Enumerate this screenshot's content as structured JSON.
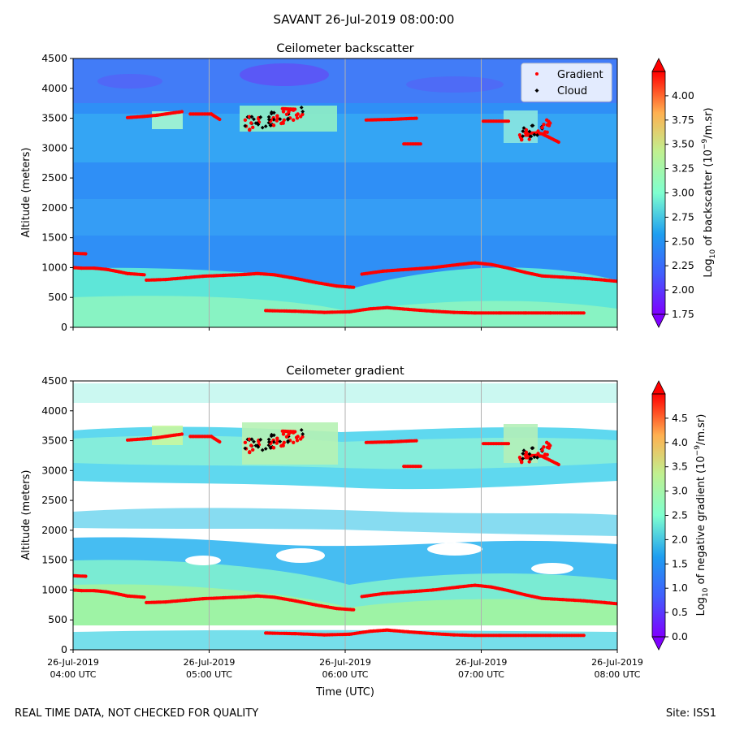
{
  "figure": {
    "title": "SAVANT 26-Jul-2019 08:00:00",
    "footer_left": "REAL TIME DATA, NOT CHECKED FOR QUALITY",
    "footer_right": "Site: ISS1",
    "xlabel": "Time (UTC)"
  },
  "colors": {
    "gradient_marker": "#ff0000",
    "cloud_marker": "#000000",
    "axis": "#000000",
    "gridline": "#b0b0b0"
  },
  "chart_data": [
    {
      "type": "heatmap",
      "title": "Ceilometer backscatter",
      "ylabel": "Altitude (meters)",
      "ylim": [
        0,
        4500
      ],
      "yticks": [
        "0",
        "500",
        "1000",
        "1500",
        "2000",
        "2500",
        "3000",
        "3500",
        "4000",
        "4500"
      ],
      "xticks": [],
      "colorbar": {
        "label_prefix": "Log",
        "label_sub": "10",
        "label_mid": " of backscatter (10",
        "label_sup": "−9",
        "label_suffix": "/m.sr)",
        "range": [
          1.75,
          4.25
        ],
        "ticks": [
          "1.75",
          "2.00",
          "2.25",
          "2.50",
          "2.75",
          "3.00",
          "3.25",
          "3.50",
          "3.75",
          "4.00"
        ]
      },
      "legend": {
        "position": "top-right",
        "entries": [
          "Gradient",
          "Cloud"
        ]
      },
      "series": [
        {
          "name": "Gradient",
          "segments": [
            [
              [
                0.0,
                1240
              ],
              [
                0.3,
                1230
              ]
            ],
            [
              [
                0.0,
                1000
              ],
              [
                0.2,
                990
              ],
              [
                0.5,
                990
              ],
              [
                0.8,
                970
              ],
              [
                1.1,
                930
              ],
              [
                1.3,
                900
              ],
              [
                1.7,
                880
              ]
            ],
            [
              [
                1.75,
                790
              ],
              [
                2.2,
                800
              ],
              [
                2.7,
                830
              ],
              [
                3.1,
                855
              ],
              [
                3.6,
                870
              ],
              [
                4.1,
                885
              ],
              [
                4.4,
                900
              ],
              [
                4.8,
                880
              ],
              [
                5.3,
                820
              ],
              [
                5.8,
                750
              ],
              [
                6.3,
                690
              ],
              [
                6.7,
                670
              ]
            ],
            [
              [
                6.9,
                890
              ],
              [
                7.4,
                940
              ],
              [
                8.0,
                970
              ],
              [
                8.6,
                1000
              ],
              [
                9.2,
                1050
              ],
              [
                9.6,
                1080
              ],
              [
                10.0,
                1050
              ],
              [
                10.4,
                990
              ],
              [
                10.8,
                920
              ],
              [
                11.2,
                860
              ],
              [
                11.7,
                840
              ],
              [
                12.2,
                820
              ],
              [
                12.7,
                790
              ],
              [
                13.0,
                770
              ]
            ],
            [
              [
                4.6,
                280
              ],
              [
                5.3,
                270
              ],
              [
                6.0,
                250
              ],
              [
                6.6,
                260
              ],
              [
                7.1,
                310
              ],
              [
                7.5,
                330
              ],
              [
                8.0,
                300
              ],
              [
                8.6,
                270
              ],
              [
                9.1,
                250
              ],
              [
                9.6,
                240
              ],
              [
                10.2,
                240
              ],
              [
                10.8,
                240
              ],
              [
                11.4,
                240
              ],
              [
                12.2,
                240
              ]
            ],
            [
              [
                1.3,
                3510
              ],
              [
                1.7,
                3530
              ],
              [
                2.0,
                3550
              ],
              [
                2.6,
                3610
              ]
            ],
            [
              [
                2.8,
                3570
              ],
              [
                3.3,
                3570
              ],
              [
                3.5,
                3480
              ]
            ],
            [
              [
                7.0,
                3470
              ],
              [
                7.6,
                3480
              ],
              [
                8.2,
                3500
              ]
            ],
            [
              [
                7.9,
                3070
              ],
              [
                8.3,
                3070
              ]
            ],
            [
              [
                9.8,
                3450
              ],
              [
                10.4,
                3450
              ]
            ],
            [
              [
                10.8,
                3260
              ],
              [
                11.2,
                3240
              ],
              [
                11.6,
                3100
              ]
            ],
            [
              [
                5.0,
                3660
              ],
              [
                5.3,
                3650
              ]
            ]
          ]
        },
        {
          "name": "Cloud",
          "clusters": [
            {
              "t": [
                4.1,
                5.5
              ],
              "alt": [
                3300,
                3650
              ]
            },
            {
              "t": [
                10.65,
                11.4
              ],
              "alt": [
                3100,
                3450
              ]
            }
          ]
        }
      ]
    },
    {
      "type": "heatmap",
      "title": "Ceilometer gradient",
      "ylabel": "Altitude (meters)",
      "ylim": [
        0,
        4500
      ],
      "yticks": [
        "0",
        "500",
        "1000",
        "1500",
        "2000",
        "2500",
        "3000",
        "3500",
        "4000",
        "4500"
      ],
      "xticks": [
        [
          "26-Jul-2019",
          "04:00 UTC"
        ],
        [
          "26-Jul-2019",
          "05:00 UTC"
        ],
        [
          "26-Jul-2019",
          "06:00 UTC"
        ],
        [
          "26-Jul-2019",
          "07:00 UTC"
        ],
        [
          "26-Jul-2019",
          "08:00 UTC"
        ]
      ],
      "colorbar": {
        "label_prefix": "Log",
        "label_sub": "10",
        "label_mid": " of negative gradient (10",
        "label_sup": "−9",
        "label_suffix": "/m.sr)",
        "range": [
          0.0,
          5.0
        ],
        "ticks": [
          "0.0",
          "0.5",
          "1.0",
          "1.5",
          "2.0",
          "2.5",
          "3.0",
          "3.5",
          "4.0",
          "4.5"
        ]
      },
      "series": [
        {
          "name": "Gradient",
          "same_as_panel": 0
        },
        {
          "name": "Cloud",
          "same_as_panel": 0
        }
      ]
    }
  ]
}
